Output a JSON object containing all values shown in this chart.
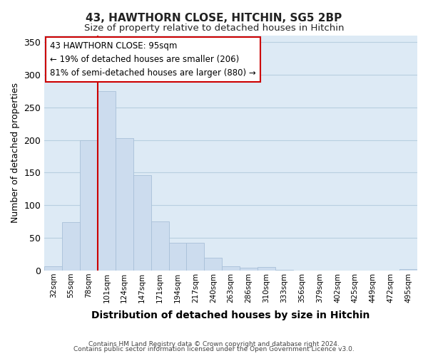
{
  "title": "43, HAWTHORN CLOSE, HITCHIN, SG5 2BP",
  "subtitle": "Size of property relative to detached houses in Hitchin",
  "xlabel": "Distribution of detached houses by size in Hitchin",
  "ylabel": "Number of detached properties",
  "bar_labels": [
    "32sqm",
    "55sqm",
    "78sqm",
    "101sqm",
    "124sqm",
    "147sqm",
    "171sqm",
    "194sqm",
    "217sqm",
    "240sqm",
    "263sqm",
    "286sqm",
    "310sqm",
    "333sqm",
    "356sqm",
    "379sqm",
    "402sqm",
    "425sqm",
    "449sqm",
    "472sqm",
    "495sqm"
  ],
  "bar_values": [
    6,
    74,
    200,
    275,
    203,
    146,
    75,
    42,
    42,
    20,
    6,
    4,
    5,
    1,
    0,
    0,
    0,
    0,
    0,
    0,
    2
  ],
  "bar_color": "#ccdcee",
  "bar_edgecolor": "#a8c0d8",
  "vline_color": "#cc0000",
  "vline_bar_index": 3,
  "annotation_text": "43 HAWTHORN CLOSE: 95sqm\n← 19% of detached houses are smaller (206)\n81% of semi-detached houses are larger (880) →",
  "annotation_box_edgecolor": "#cc0000",
  "annotation_box_facecolor": "#ffffff",
  "ylim": [
    0,
    360
  ],
  "yticks": [
    0,
    50,
    100,
    150,
    200,
    250,
    300,
    350
  ],
  "ax_facecolor": "#ddeaf5",
  "background_color": "#ffffff",
  "grid_color": "#b8cfe0",
  "footer_line1": "Contains HM Land Registry data © Crown copyright and database right 2024.",
  "footer_line2": "Contains public sector information licensed under the Open Government Licence v3.0."
}
